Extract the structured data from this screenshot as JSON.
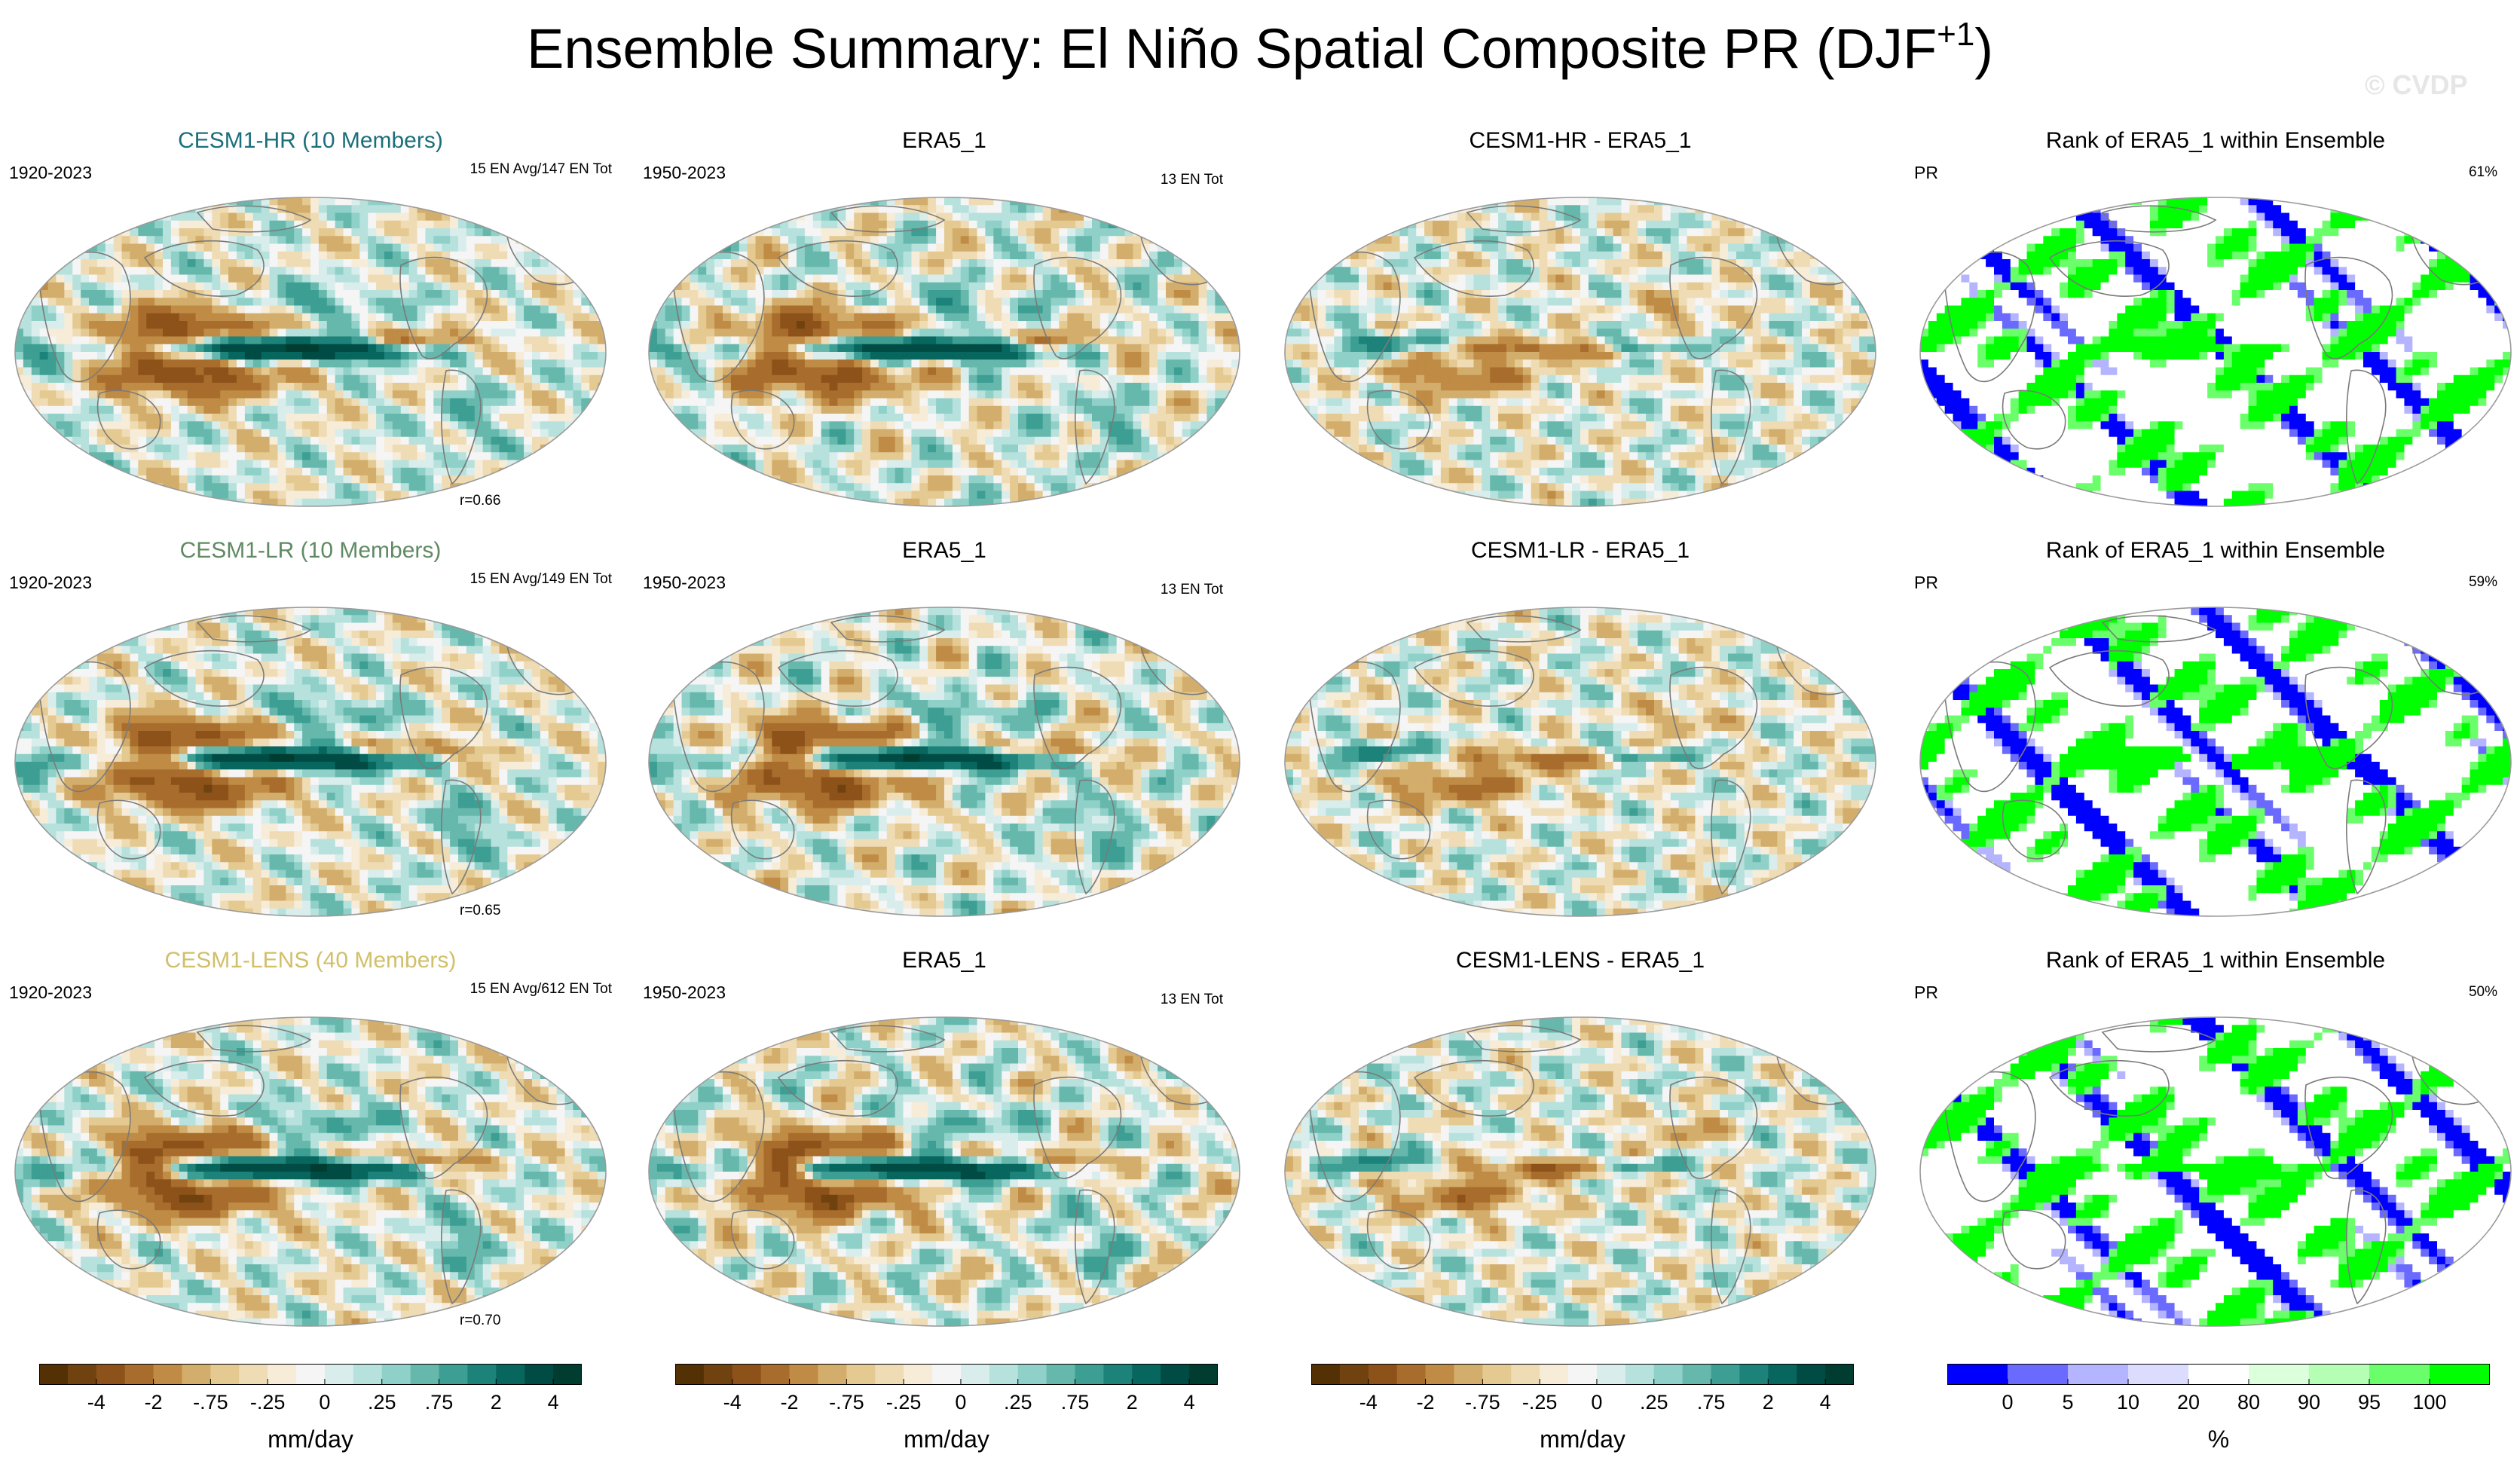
{
  "figure": {
    "title": "Ensemble Summary: El Niño Spatial Composite PR (DJF",
    "title_sup": "+1",
    "title_close": ")",
    "watermark": "© CVDP"
  },
  "chart_data": {
    "type": "heatmap",
    "variable": "PR",
    "season": "DJF+1",
    "rows": [
      {
        "ensemble": {
          "title": "CESM1-HR (10 Members)",
          "title_color": "#1b6f7b",
          "period": "1920-2023",
          "events": "15 EN Avg/147 EN Tot",
          "pattern_corr": "r=0.66"
        },
        "observed": {
          "title": "ERA5_1",
          "period": "1950-2023",
          "events": "13 EN Tot"
        },
        "difference": {
          "title": "CESM1-HR - ERA5_1"
        },
        "rank": {
          "title": "Rank of ERA5_1 within Ensemble",
          "var": "PR",
          "pct": "61%"
        }
      },
      {
        "ensemble": {
          "title": "CESM1-LR (10 Members)",
          "title_color": "#5f8a63",
          "period": "1920-2023",
          "events": "15 EN Avg/149 EN Tot",
          "pattern_corr": "r=0.65"
        },
        "observed": {
          "title": "ERA5_1",
          "period": "1950-2023",
          "events": "13 EN Tot"
        },
        "difference": {
          "title": "CESM1-LR - ERA5_1"
        },
        "rank": {
          "title": "Rank of ERA5_1 within Ensemble",
          "var": "PR",
          "pct": "59%"
        }
      },
      {
        "ensemble": {
          "title": "CESM1-LENS (40 Members)",
          "title_color": "#d2bf6a",
          "period": "1920-2023",
          "events": "15 EN Avg/612 EN Tot",
          "pattern_corr": "r=0.70"
        },
        "observed": {
          "title": "ERA5_1",
          "period": "1950-2023",
          "events": "13 EN Tot"
        },
        "difference": {
          "title": "CESM1-LENS - ERA5_1"
        },
        "rank": {
          "title": "Rank of ERA5_1 within Ensemble",
          "var": "PR",
          "pct": "50%"
        }
      }
    ],
    "colorbar_pr": {
      "units": "mm/day",
      "tick_labels": [
        "-4",
        "-2",
        "-.75",
        "-.25",
        "0",
        ".25",
        ".75",
        "2",
        "4"
      ],
      "colors": [
        "#543005",
        "#6f4210",
        "#8c5219",
        "#a86d2c",
        "#bf8b45",
        "#d3ad6b",
        "#e4c990",
        "#efdcb5",
        "#f6ecd8",
        "#f5f5f5",
        "#d9eeec",
        "#b6e1dc",
        "#8fd0c8",
        "#66b8ac",
        "#3d9e93",
        "#1d8279",
        "#07665e",
        "#004c44",
        "#003c30"
      ]
    },
    "colorbar_rank": {
      "units": "%",
      "tick_labels": [
        "0",
        "5",
        "10",
        "20",
        "80",
        "90",
        "95",
        "100"
      ],
      "colors": [
        "#0000ff",
        "#6a6aff",
        "#b4b4ff",
        "#dcdcff",
        "#ffffff",
        "#dcffdc",
        "#b4ffb4",
        "#6aff6a",
        "#00ff00"
      ]
    }
  }
}
